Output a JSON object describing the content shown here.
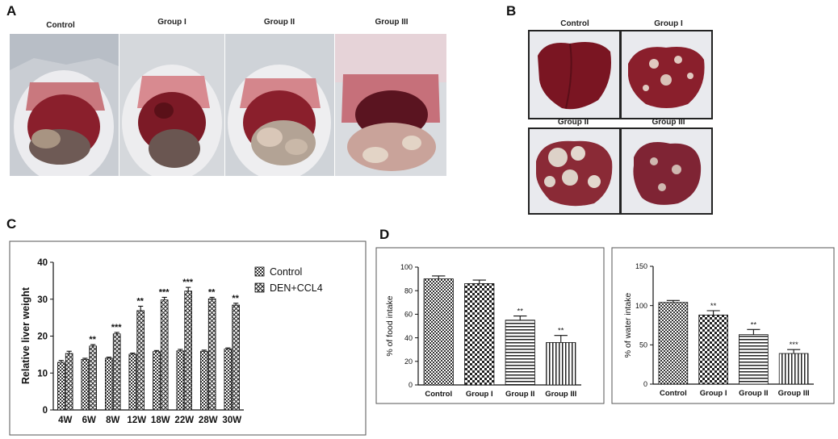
{
  "panels": {
    "a": {
      "letter": "A",
      "labels": [
        "Control",
        "Group I",
        "Group II",
        "Group III"
      ]
    },
    "b": {
      "letter": "B",
      "labels": [
        "Control",
        "Group I",
        "Group II",
        "Group III"
      ]
    },
    "c": {
      "letter": "C"
    },
    "d": {
      "letter": "D"
    }
  },
  "colors": {
    "tissue": "#8a1f2c",
    "fur": "#e8e8ea",
    "tumor": "#d9c7b8",
    "background": "#d7dbe0"
  },
  "chart_data": [
    {
      "id": "C",
      "type": "bar",
      "categories": [
        "4W",
        "6W",
        "8W",
        "12W",
        "18W",
        "22W",
        "28W",
        "30W"
      ],
      "series": [
        {
          "name": "Control",
          "values": [
            12.9,
            13.7,
            14.0,
            15.1,
            15.8,
            16.0,
            15.9,
            16.5
          ],
          "errors": [
            0.5,
            0.3,
            0.3,
            0.3,
            0.3,
            0.4,
            0.3,
            0.3
          ],
          "pattern": "checker"
        },
        {
          "name": "DEN+CCL4",
          "values": [
            15.3,
            17.3,
            20.6,
            26.9,
            29.8,
            32.2,
            30.1,
            28.4
          ],
          "errors": [
            0.6,
            0.4,
            0.4,
            1.2,
            0.7,
            1.0,
            0.4,
            0.5
          ],
          "pattern": "cross"
        }
      ],
      "annotations": [
        "",
        "**",
        "***",
        "**",
        "***",
        "***",
        "**",
        "**"
      ],
      "ylabel": "Relative liver weight",
      "xlabel": "",
      "yticks": [
        "0",
        "10",
        "20",
        "30",
        "40"
      ],
      "ylim": [
        0,
        40
      ],
      "legend": "top-right"
    },
    {
      "id": "D1",
      "type": "bar",
      "categories": [
        "Control",
        "Group I",
        "Group II",
        "Group III"
      ],
      "values": [
        90,
        86,
        55,
        36
      ],
      "errors": [
        2.5,
        3.0,
        3.5,
        6.0
      ],
      "annotations": [
        "",
        "",
        "**",
        "**"
      ],
      "patterns": [
        "checker",
        "check",
        "hline",
        "vline"
      ],
      "ylabel": "% of food intake",
      "yticks": [
        "0",
        "20",
        "40",
        "60",
        "80",
        "100"
      ],
      "ylim": [
        0,
        100
      ]
    },
    {
      "id": "D2",
      "type": "bar",
      "categories": [
        "Control",
        "Group I",
        "Group II",
        "Group III"
      ],
      "values": [
        104,
        88,
        63,
        39
      ],
      "errors": [
        2.5,
        5.5,
        6.5,
        5.0
      ],
      "annotations": [
        "",
        "**",
        "**",
        "***"
      ],
      "patterns": [
        "checker",
        "check",
        "hline",
        "vline"
      ],
      "ylabel": "% of water intake",
      "yticks": [
        "0",
        "50",
        "100",
        "150"
      ],
      "ylim": [
        0,
        150
      ]
    }
  ]
}
